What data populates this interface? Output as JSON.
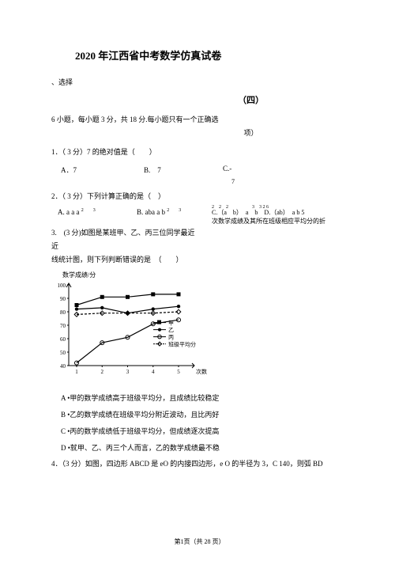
{
  "title": "2020 年江西省中考数学仿真试卷",
  "section_label": "、选择",
  "paper_num": "（四）",
  "instruction": "6 小题，每小题 3 分，共 18 分.每小题只有一个正确选",
  "instruction_sub": "项）",
  "q1": {
    "stem": "1．（ 3 分）7 的绝对值是（　　）",
    "A": "A．7",
    "B": "B.　7",
    "C": "C.-",
    "C_sub": "7"
  },
  "q2": {
    "stem": "2．（ 3 分）下列计算正确的是（　）",
    "A_base": "A. a a a",
    "A_exp": "2　　3",
    "B_base": "B. aba a b",
    "B_exp": "2　　3",
    "CD_line1": "C.（a　b）　a　b　D.（ab）　a b 5",
    "CD_exp": "2　2　2　　　　　3　3 2 6",
    "note": "次数学成绩及其所在班级相应平均分的折"
  },
  "q3": {
    "line1": "3.　(3 分)如图是某班甲、乙、丙三位同学最近",
    "line2": "线统计图，则下列判断错误的是　（　　）"
  },
  "chart": {
    "ylabel": "数学成绩/分",
    "xlabel_right": "次数",
    "y_ticks": [
      100,
      90,
      80,
      70,
      60,
      50,
      40
    ],
    "x_ticks": [
      1,
      2,
      3,
      4,
      5
    ],
    "width": 165,
    "height": 122,
    "bg": "#ffffff",
    "axis_color": "#000000",
    "series": [
      {
        "name": "甲",
        "color": "#000000",
        "marker": "square",
        "vals": [
          85,
          91,
          91,
          93,
          93
        ]
      },
      {
        "name": "乙",
        "color": "#000000",
        "marker": "dot",
        "vals": [
          82,
          83,
          79,
          82,
          84
        ]
      },
      {
        "name": "丙",
        "color": "#000000",
        "marker": "circle",
        "vals": [
          42,
          57,
          61,
          71,
          74
        ]
      },
      {
        "name": "班级平均分",
        "color": "#000000",
        "marker": "diamond",
        "dash": true,
        "vals": [
          78,
          79,
          79,
          79,
          80
        ]
      }
    ],
    "legend": [
      "甲",
      "乙",
      "丙",
      "班级平均分"
    ]
  },
  "statements": {
    "A": "A •甲的数学成绩高于班级平均分，且成绩比较稳定",
    "B": "B •乙的数学成绩在班级平均分附近波动，且比丙好",
    "C": "C •丙的数学成绩低于班级平均分，但成绩逐次提高",
    "D": "D •就甲、乙、丙三个人而言，乙的数学成绩最不稳"
  },
  "q4": "4．（3 分）如图，四边形 ABCD 是 eO 的内接四边形，e O 的半径为 3，C 140，则弧 BD",
  "footer": "第1页（共 28 页）"
}
